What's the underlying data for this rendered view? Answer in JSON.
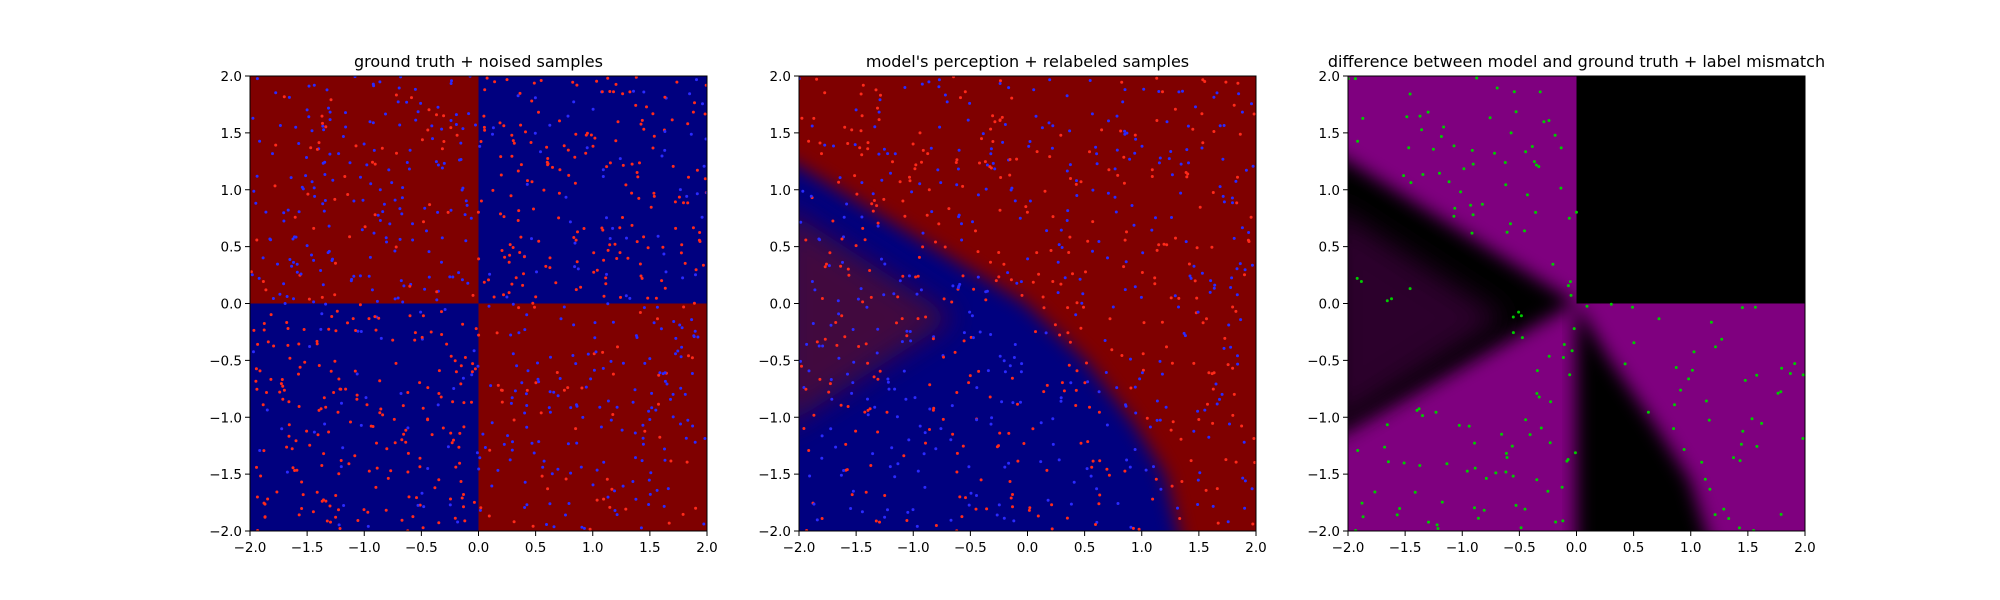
{
  "figure": {
    "background": "#ffffff"
  },
  "colors": {
    "red_region": "#7f0000",
    "blue_region": "#00007f",
    "purple_region": "#7f007f",
    "black_region": "#000000",
    "red_point": "#ff2a1a",
    "blue_point": "#2a2aff",
    "green_point": "#00cc00"
  },
  "chart_data": [
    {
      "type": "heatmap",
      "title": "ground truth + noised samples",
      "xlabel": "",
      "ylabel": "",
      "xlim": [
        -2.0,
        2.0
      ],
      "ylim": [
        -2.0,
        2.0
      ],
      "xticks": [
        "−2.0",
        "−1.5",
        "−1.0",
        "−0.5",
        "0.0",
        "0.5",
        "1.0",
        "1.5",
        "2.0"
      ],
      "yticks": [
        "2.0",
        "1.5",
        "1.0",
        "0.5",
        "0.0",
        "−0.5",
        "−1.0",
        "−1.5",
        "−2.0"
      ],
      "regions": "checkerboard: red where x*y < 0, blue where x*y > 0",
      "samples": "red and blue dots, about 800 each, spread uniformly over [-2,2]x[-2,2]"
    },
    {
      "type": "heatmap",
      "title": "model's perception + relabeled samples",
      "xlabel": "",
      "ylabel": "",
      "xlim": [
        -2.0,
        2.0
      ],
      "ylim": [
        -2.0,
        2.0
      ],
      "xticks": [
        "−2.0",
        "−1.5",
        "−1.0",
        "−0.5",
        "0.0",
        "0.5",
        "1.0",
        "1.5",
        "2.0"
      ],
      "yticks": [
        "2.0",
        "1.5",
        "1.0",
        "0.5",
        "0.0",
        "−0.5",
        "−1.0",
        "−1.5",
        "−2.0"
      ],
      "regions": "red background with a blue wedge on the lower-left, a reddish wedge inside it, blurred edges",
      "samples": "red and blue dots, about 800 each"
    },
    {
      "type": "heatmap",
      "title": "difference between model and ground truth + label mismatch",
      "xlabel": "",
      "ylabel": "",
      "xlim": [
        -2.0,
        2.0
      ],
      "ylim": [
        -2.0,
        2.0
      ],
      "xticks": [
        "−2.0",
        "−1.5",
        "−1.0",
        "−0.5",
        "0.0",
        "0.5",
        "1.0",
        "1.5",
        "2.0"
      ],
      "yticks": [
        "2.0",
        "1.5",
        "1.0",
        "0.5",
        "0.0",
        "−0.5",
        "−1.0",
        "−1.5",
        "−2.0"
      ],
      "regions": "purple where model disagrees with ground truth, black where it agrees",
      "samples": "green dots where label mismatch, about 300"
    }
  ]
}
